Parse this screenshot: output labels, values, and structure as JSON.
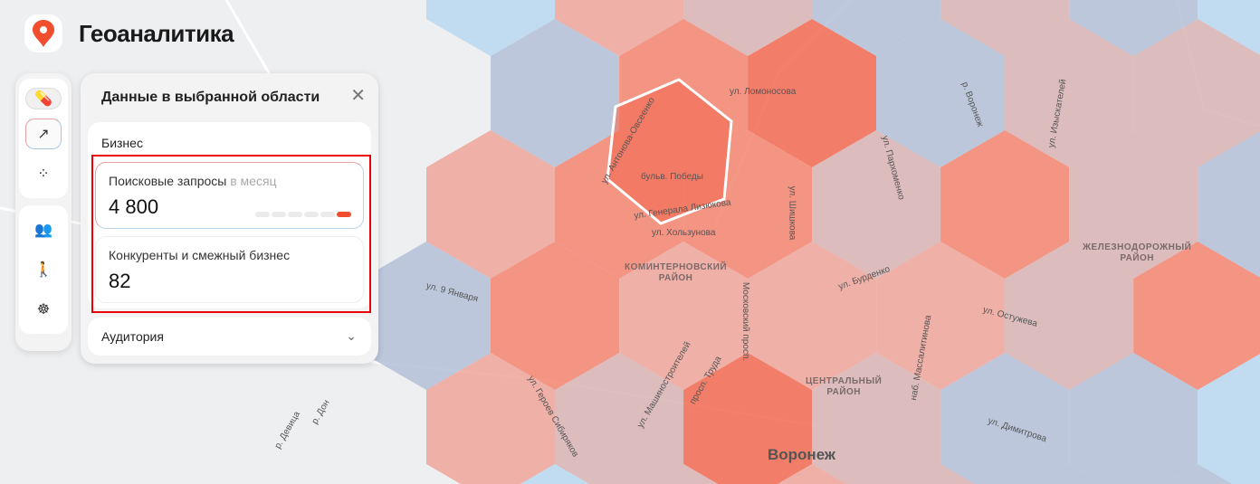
{
  "app": {
    "title": "Геоаналитика",
    "brand_color": "#f04e2e"
  },
  "toolbar": {
    "items": [
      {
        "icon": "pills-icon"
      },
      {
        "icon": "arrow-up-right-icon",
        "active": true
      },
      {
        "icon": "dots-icon"
      },
      {
        "icon": "people-icon"
      },
      {
        "icon": "pedestrian-icon"
      },
      {
        "icon": "steering-wheel-icon"
      }
    ]
  },
  "panel": {
    "title": "Данные в выбранной области",
    "close_icon": "close-icon",
    "section_title": "Бизнес",
    "cards": [
      {
        "label": "Поисковые запросы",
        "label_suffix": "в месяц",
        "value": "4 800",
        "level": 6,
        "level_max": 6
      },
      {
        "label": "Конкуренты и смежный бизнес",
        "value": "82"
      }
    ],
    "accordion": {
      "label": "Аудитория",
      "icon": "chevron-down-icon"
    }
  },
  "map": {
    "city": "Воронеж",
    "districts": [
      {
        "name": "КОМИНТЕРНОВСКИЙ\nРАЙОН"
      },
      {
        "name": "ЦЕНТРАЛЬНЫЙ\nРАЙОН"
      },
      {
        "name": "ЖЕЛЕЗНОДОРОЖНЫЙ\nРАЙОН"
      }
    ],
    "streets": [
      "ул. Ломоносова",
      "р. Воронеж",
      "ул. Изыскателей",
      "ул. Антонова-Овсеенко",
      "бульв. Победы",
      "ул. Шишкова",
      "ул. Хользунова",
      "ул. Генерала Лизюкова",
      "Московский просп.",
      "ул. Пархоменко",
      "ул. Бурденко",
      "ул. 9 Января",
      "ул. Остужева",
      "ул. Машиностроителей",
      "просп. Труда",
      "наб. Массалитинова",
      "ул. Героев Сибиряков",
      "ул. Димитрова",
      "р. Дон",
      "р. Девица"
    ],
    "hex_colors": {
      "1": "#b9d8f0",
      "2": "#b3bfd8",
      "3": "#d8b3b3",
      "4": "#efa49a",
      "5": "#f4846f",
      "6": "#f26a52"
    },
    "hex_levels": [
      [
        0,
        1,
        4,
        3,
        2,
        3,
        2,
        1
      ],
      [
        0,
        2,
        5,
        6,
        2,
        3,
        3,
        1
      ],
      [
        0,
        4,
        5,
        5,
        3,
        5,
        3,
        2
      ],
      [
        2,
        5,
        4,
        4,
        4,
        3,
        5,
        2
      ],
      [
        0,
        4,
        3,
        6,
        3,
        2,
        2,
        1
      ],
      [
        0,
        1,
        3,
        4,
        3,
        2,
        2,
        1
      ]
    ]
  }
}
